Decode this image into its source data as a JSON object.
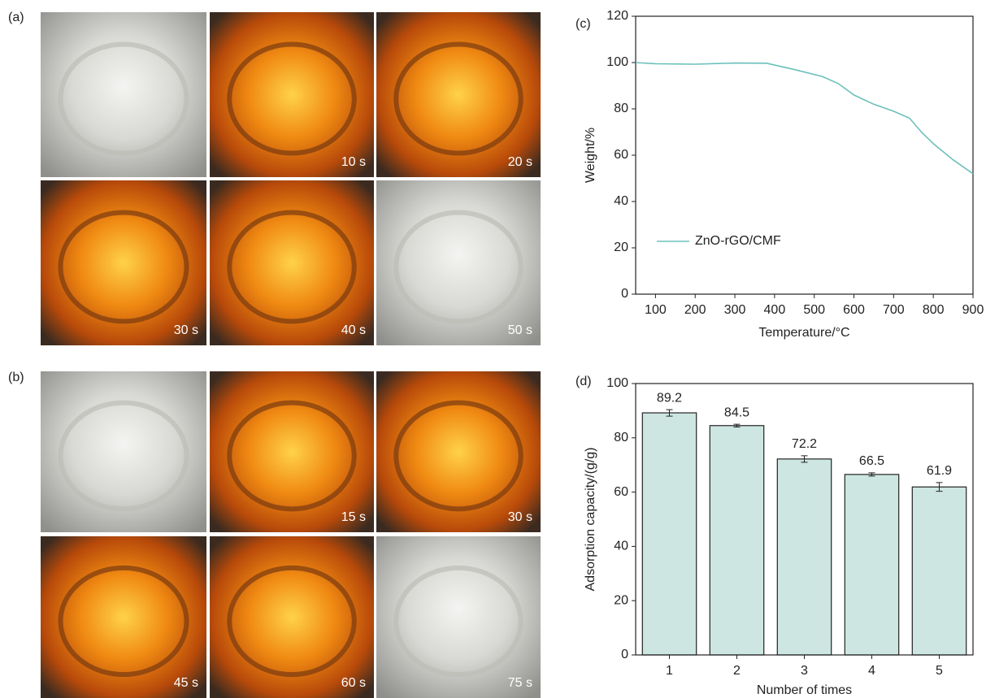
{
  "figure": {
    "panel_a": {
      "label": "(a)",
      "times": [
        "10 s",
        "20 s",
        "30 s",
        "40 s",
        "50 s"
      ]
    },
    "panel_b": {
      "label": "(b)",
      "times": [
        "15 s",
        "30 s",
        "45 s",
        "60 s",
        "75 s"
      ]
    }
  },
  "chart_data": [
    {
      "type": "line",
      "label": "(c)",
      "x_label": "Temperature/°C",
      "y_label": "Weight/%",
      "x": [
        50,
        100,
        200,
        300,
        380,
        450,
        520,
        560,
        600,
        650,
        700,
        740,
        770,
        800,
        850,
        900
      ],
      "series": [
        {
          "name": "ZnO-rGO/CMF",
          "color": "#6cc0bb",
          "values": [
            100,
            99.5,
            99.3,
            99.8,
            99.7,
            97,
            94,
            91,
            86,
            82,
            79,
            76,
            70,
            65,
            58,
            52
          ]
        }
      ],
      "xlim": [
        50,
        900
      ],
      "xticks": [
        100,
        200,
        300,
        400,
        500,
        600,
        700,
        800,
        900
      ],
      "ylim": [
        0,
        120
      ],
      "yticks": [
        0,
        20,
        40,
        60,
        80,
        100,
        120
      ],
      "legend": "lower left"
    },
    {
      "type": "bar",
      "label": "(d)",
      "x_label": "Number of times",
      "y_label": "Adsorption capacity/(g/g)",
      "categories": [
        "1",
        "2",
        "3",
        "4",
        "5"
      ],
      "values": [
        89.2,
        84.5,
        72.2,
        66.5,
        61.9
      ],
      "errors": [
        1.2,
        0.5,
        1.2,
        0.6,
        1.6
      ],
      "color": "#cde6e2",
      "ylim": [
        0,
        100
      ],
      "yticks": [
        0,
        20,
        40,
        60,
        80,
        100
      ]
    }
  ]
}
